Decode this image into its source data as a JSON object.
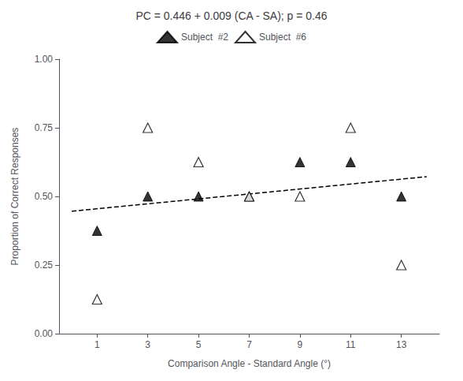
{
  "chart_data": {
    "type": "scatter",
    "title": "PC = 0.446 + 0.009 (CA - SA); p = 0.46",
    "xlabel": "Comparison Angle - Standard Angle (°)",
    "ylabel": "Proportion of Correct Responses",
    "xlim": [
      -0.5,
      14.5
    ],
    "ylim": [
      0.0,
      1.0
    ],
    "xticks": [
      1,
      3,
      5,
      7,
      9,
      11,
      13
    ],
    "yticks": [
      {
        "value": 0.0,
        "label": "0.00"
      },
      0.25,
      {
        "value": 0.5,
        "label": "0.50"
      },
      0.75,
      {
        "value": 1.0,
        "label": "1.00"
      }
    ],
    "grid": false,
    "legend": "top",
    "series": [
      {
        "name": "Subject  #2",
        "type": "scatter",
        "marker": "triangle",
        "color": "#000000",
        "x": [
          1,
          3,
          5,
          7,
          9,
          11,
          13
        ],
        "values": [
          0.375,
          0.5,
          0.5,
          0.5,
          0.625,
          0.625,
          0.5
        ]
      },
      {
        "name": "Subject  #6",
        "type": "scatter",
        "marker": "triangle-open",
        "color": "#000000",
        "x": [
          1,
          3,
          5,
          7,
          9,
          11,
          13
        ],
        "values": [
          0.125,
          0.75,
          0.625,
          0.5,
          0.5,
          0.75,
          0.25
        ]
      },
      {
        "type": "line",
        "line_style": "dashed",
        "color": "#000000",
        "x": [
          0,
          14
        ],
        "values": [
          0.446,
          0.572
        ]
      }
    ]
  }
}
